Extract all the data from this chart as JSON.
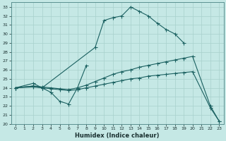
{
  "xlabel": "Humidex (Indice chaleur)",
  "bg_color": "#c5e8e5",
  "grid_color": "#a8d0cc",
  "line_color": "#1a6060",
  "xlim": [
    -0.5,
    23.5
  ],
  "ylim": [
    20,
    33.5
  ],
  "xticks": [
    0,
    1,
    2,
    3,
    4,
    5,
    6,
    7,
    8,
    9,
    10,
    11,
    12,
    13,
    14,
    15,
    16,
    17,
    18,
    19,
    20,
    21,
    22,
    23
  ],
  "yticks": [
    20,
    21,
    22,
    23,
    24,
    25,
    26,
    27,
    28,
    29,
    30,
    31,
    32,
    33
  ],
  "curve1_x": [
    0,
    2,
    3,
    9,
    10,
    11,
    12,
    13,
    14,
    15,
    16,
    17,
    18,
    19
  ],
  "curve1_y": [
    24,
    24.5,
    24,
    28.5,
    31.5,
    31.8,
    32,
    33,
    32.5,
    32,
    31.2,
    30.5,
    30,
    29
  ],
  "curve2_x": [
    0,
    2,
    3,
    4,
    5,
    6,
    7,
    8
  ],
  "curve2_y": [
    24,
    24.2,
    24,
    23.5,
    22.5,
    22.2,
    24,
    26.5
  ],
  "curve3_x": [
    0,
    2,
    3,
    4,
    5,
    6,
    7,
    8,
    9,
    10,
    11,
    12,
    13,
    14,
    15,
    16,
    17,
    18,
    19,
    20,
    22,
    23
  ],
  "curve3_y": [
    24,
    24.2,
    24.1,
    24.0,
    23.9,
    23.8,
    24.0,
    24.3,
    24.7,
    25.1,
    25.5,
    25.8,
    26.0,
    26.3,
    26.5,
    26.7,
    26.9,
    27.1,
    27.3,
    27.5,
    22.0,
    20.3
  ],
  "curve4_x": [
    0,
    2,
    3,
    4,
    5,
    6,
    7,
    8,
    9,
    10,
    11,
    12,
    13,
    14,
    15,
    16,
    17,
    18,
    19,
    20,
    22,
    23
  ],
  "curve4_y": [
    24,
    24.1,
    24.0,
    23.9,
    23.8,
    23.7,
    23.8,
    24.0,
    24.2,
    24.4,
    24.6,
    24.8,
    25.0,
    25.1,
    25.3,
    25.4,
    25.5,
    25.6,
    25.7,
    25.8,
    21.8,
    20.3
  ]
}
